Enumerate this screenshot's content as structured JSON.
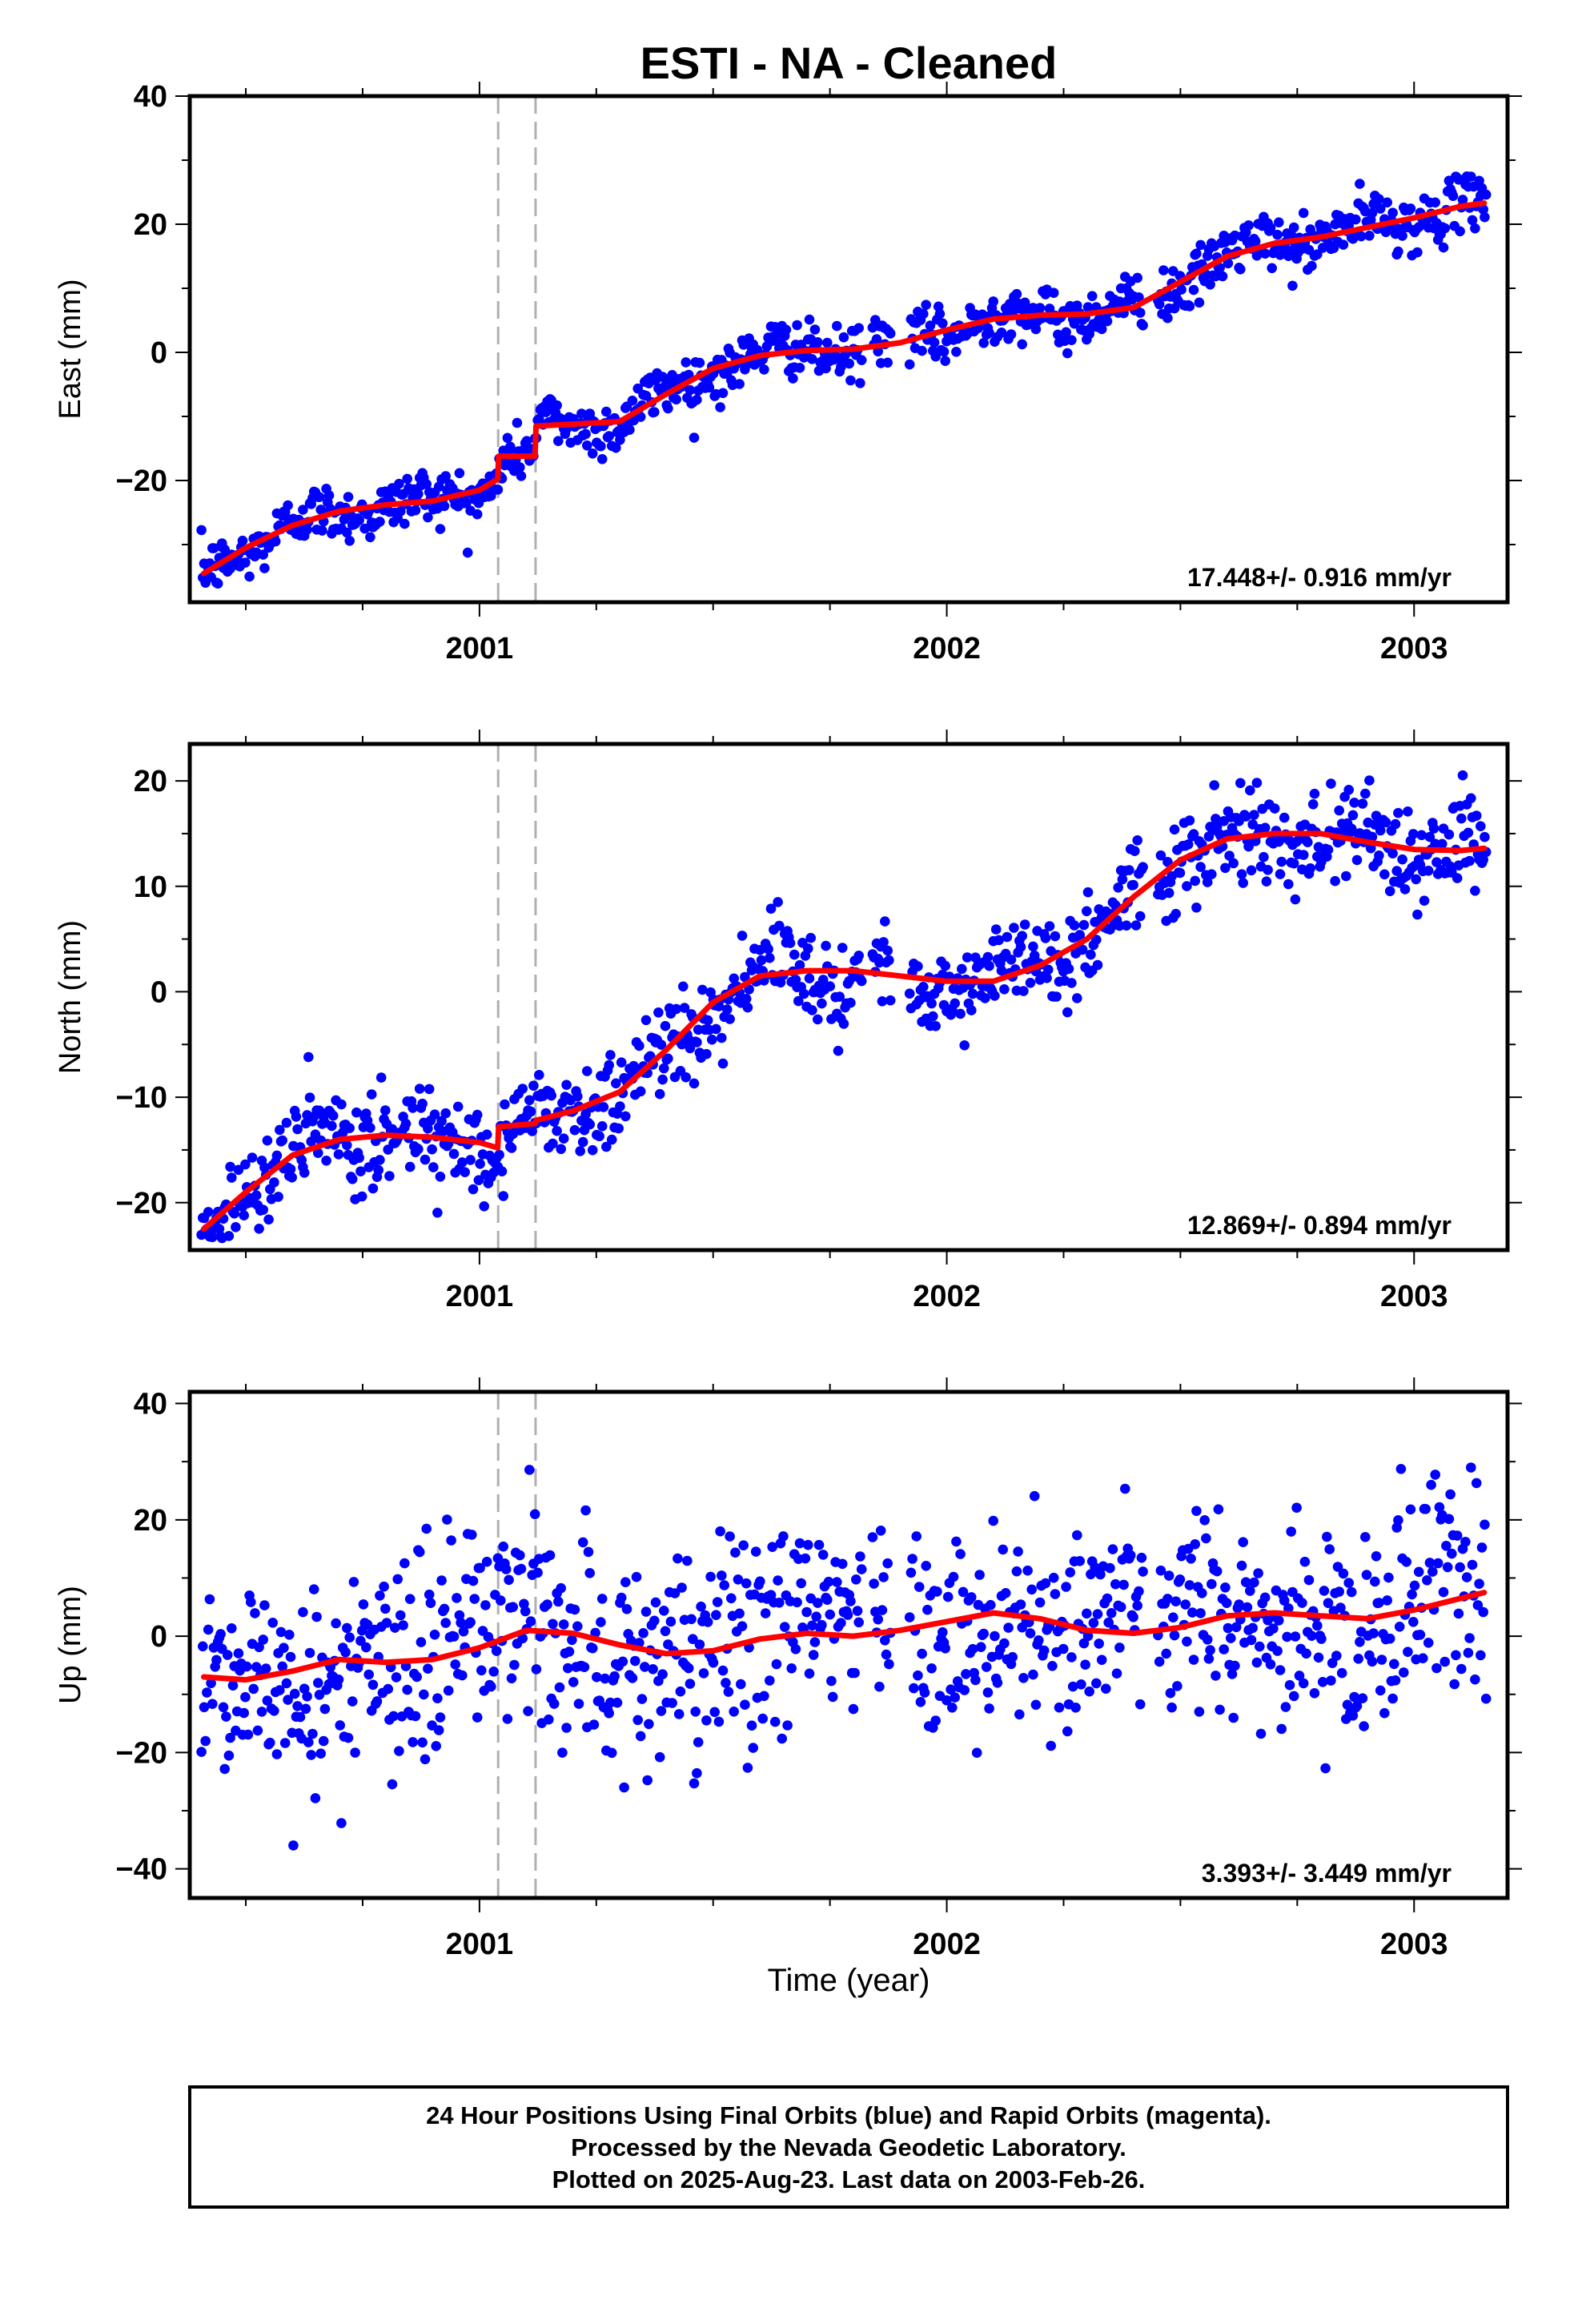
{
  "title": "ESTI  - NA - Cleaned",
  "xlabel": "Time (year)",
  "colors": {
    "final_orbits": "#0000ff",
    "model": "#ff0000",
    "offset_lines": "#b0b0b0",
    "frame": "#000000"
  },
  "footer": {
    "line1": "24 Hour Positions Using Final Orbits (blue) and Rapid Orbits (magenta).",
    "line2": "Processed by the Nevada Geodetic Laboratory.",
    "line3": "Plotted on 2025-Aug-23. Last data on 2003-Feb-26."
  },
  "chart_data": [
    {
      "type": "scatter",
      "ylabel": "East (mm)",
      "rate_text": "17.448+/- 0.916 mm/yr",
      "xlim": [
        2000.38,
        2003.2
      ],
      "ylim": [
        -39,
        40
      ],
      "yticks": [
        -20,
        0,
        20,
        40
      ],
      "ytick_labels": [
        "−20",
        "0",
        "20",
        "40"
      ],
      "xticks": [
        2001,
        2002,
        2003
      ],
      "xtick_labels": [
        "2001",
        "2002",
        "2003"
      ],
      "offsets_x": [
        2001.04,
        2001.12
      ],
      "model": {
        "x": [
          2000.41,
          2000.5,
          2000.6,
          2000.7,
          2000.8,
          2000.9,
          2001.0,
          2001.039,
          2001.041,
          2001.119,
          2001.121,
          2001.2,
          2001.3,
          2001.4,
          2001.5,
          2001.6,
          2001.7,
          2001.8,
          2001.9,
          2002.0,
          2002.1,
          2002.2,
          2002.3,
          2002.4,
          2002.5,
          2002.6,
          2002.7,
          2002.8,
          2002.9,
          2003.0,
          2003.1,
          2003.15
        ],
        "y": [
          -34.5,
          -30.5,
          -27,
          -24.8,
          -23.8,
          -23.2,
          -21.5,
          -19.8,
          -16.2,
          -16.2,
          -11.5,
          -11.2,
          -10.8,
          -6.5,
          -2.5,
          -0.5,
          0.3,
          0.5,
          1.5,
          3.5,
          5.2,
          5.8,
          6,
          7,
          11,
          15,
          17,
          18,
          19.5,
          21,
          22.8,
          23.3
        ]
      },
      "dots_count": 937
    },
    {
      "type": "scatter",
      "ylabel": "North (mm)",
      "rate_text": "12.869+/- 0.894 mm/yr",
      "xlim": [
        2000.38,
        2003.2
      ],
      "ylim": [
        -24.5,
        23.5
      ],
      "yticks": [
        -20,
        -10,
        0,
        10,
        20
      ],
      "ytick_labels": [
        "−20",
        "−10",
        "0",
        "10",
        "20"
      ],
      "xticks": [
        2001,
        2002,
        2003
      ],
      "xtick_labels": [
        "2001",
        "2002",
        "2003"
      ],
      "offsets_x": [
        2001.04,
        2001.12
      ],
      "model": {
        "x": [
          2000.41,
          2000.5,
          2000.6,
          2000.7,
          2000.8,
          2000.9,
          2001.0,
          2001.039,
          2001.041,
          2001.119,
          2001.121,
          2001.2,
          2001.3,
          2001.4,
          2001.5,
          2001.6,
          2001.7,
          2001.8,
          2001.9,
          2002.0,
          2002.1,
          2002.2,
          2002.3,
          2002.4,
          2002.5,
          2002.6,
          2002.7,
          2002.8,
          2002.9,
          2003.0,
          2003.1,
          2003.15
        ],
        "y": [
          -22.5,
          -19,
          -15.5,
          -14,
          -13.6,
          -13.8,
          -14.3,
          -14.8,
          -12.8,
          -12.5,
          -12.2,
          -11.3,
          -9.5,
          -5.5,
          -1,
          1.5,
          2,
          2,
          1.5,
          1,
          1,
          2.5,
          5,
          9,
          12.5,
          14.5,
          15,
          15,
          14.2,
          13.5,
          13.4,
          13.6
        ]
      },
      "dots_count": 937
    },
    {
      "type": "scatter",
      "ylabel": "Up (mm)",
      "rate_text": "3.393+/- 3.449 mm/yr",
      "xlim": [
        2000.38,
        2003.2
      ],
      "ylim": [
        -45,
        42
      ],
      "yticks": [
        -40,
        -20,
        0,
        20,
        40
      ],
      "ytick_labels": [
        "−40",
        "−20",
        "0",
        "20",
        "40"
      ],
      "xticks": [
        2001,
        2002,
        2003
      ],
      "xtick_labels": [
        "2001",
        "2002",
        "2003"
      ],
      "offsets_x": [
        2001.04,
        2001.12
      ],
      "model": {
        "x": [
          2000.41,
          2000.5,
          2000.6,
          2000.7,
          2000.8,
          2000.9,
          2001.0,
          2001.1,
          2001.2,
          2001.3,
          2001.4,
          2001.5,
          2001.6,
          2001.7,
          2001.8,
          2001.9,
          2002.0,
          2002.1,
          2002.2,
          2002.3,
          2002.4,
          2002.5,
          2002.6,
          2002.7,
          2002.8,
          2002.9,
          2003.0,
          2003.1,
          2003.15
        ],
        "y": [
          -7,
          -7.5,
          -6,
          -4,
          -4.5,
          -4,
          -2,
          1,
          0.5,
          -1.5,
          -3,
          -2.5,
          -0.5,
          0.5,
          0,
          1,
          2.5,
          4,
          3,
          1,
          0.5,
          1.5,
          3.5,
          4,
          3.5,
          3,
          4.5,
          6.5,
          7.5
        ]
      },
      "dots_count": 937
    }
  ]
}
